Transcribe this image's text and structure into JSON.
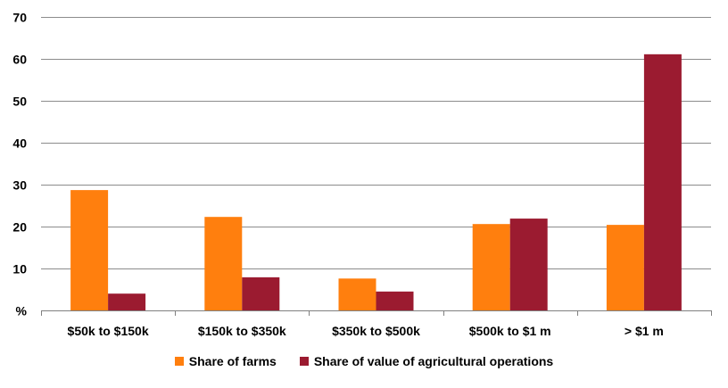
{
  "chart_data": {
    "type": "bar",
    "categories": [
      "$50k to $150k",
      "$150k to $350k",
      "$350k to $500k",
      "$500k to $1 m",
      "> $1 m"
    ],
    "series": [
      {
        "name": "Share of farms",
        "color": "#ff7f0e",
        "values": [
          28.7,
          22.3,
          7.6,
          20.6,
          20.4
        ]
      },
      {
        "name": "Share of value of agricultural operations",
        "color": "#9b1b30",
        "values": [
          4.0,
          7.9,
          4.5,
          21.9,
          61.1
        ]
      }
    ],
    "y_ticks": [
      "%",
      "10",
      "20",
      "30",
      "40",
      "50",
      "60",
      "70"
    ],
    "ylim": [
      0,
      70
    ],
    "grid": true,
    "legend_position": "bottom"
  }
}
